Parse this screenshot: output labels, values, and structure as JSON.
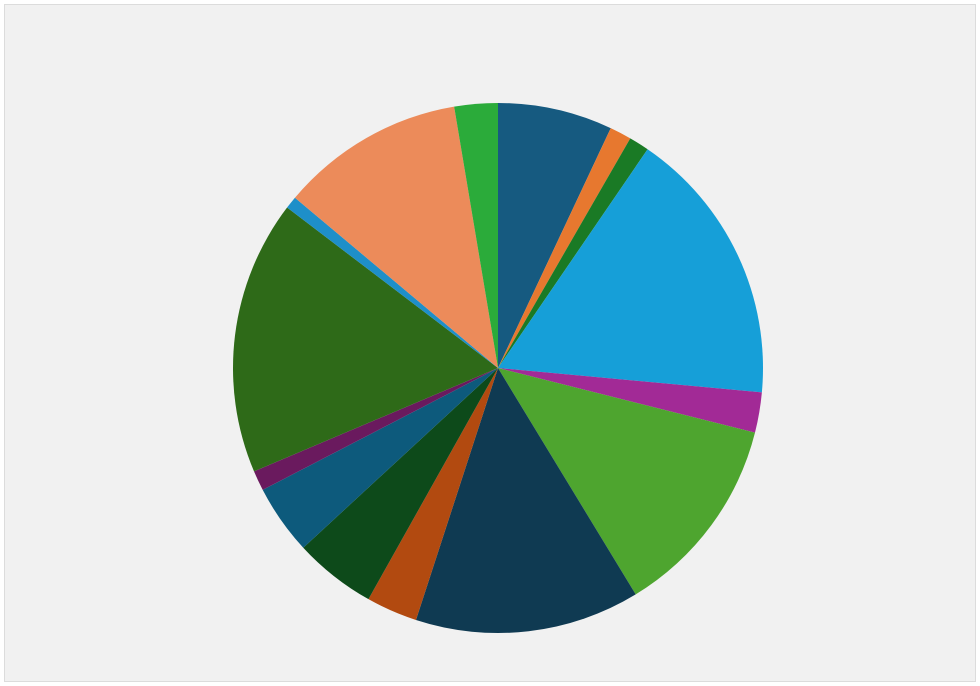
{
  "chart_data": {
    "type": "pie",
    "title": "",
    "start_angle_deg": 0,
    "direction": "clockwise",
    "legend": "none",
    "slices": [
      {
        "value": 7.4,
        "color": "#165a80"
      },
      {
        "value": 1.4,
        "color": "#e7782f"
      },
      {
        "value": 1.3,
        "color": "#1a7a25"
      },
      {
        "value": 17.9,
        "color": "#169fd8"
      },
      {
        "value": 2.6,
        "color": "#a22a96"
      },
      {
        "value": 13.1,
        "color": "#4ea52f"
      },
      {
        "value": 14.5,
        "color": "#0f3a52"
      },
      {
        "value": 3.3,
        "color": "#b24a10"
      },
      {
        "value": 5.3,
        "color": "#0d4a1a"
      },
      {
        "value": 4.5,
        "color": "#0d5a7c"
      },
      {
        "value": 1.3,
        "color": "#6a1a5e"
      },
      {
        "value": 17.7,
        "color": "#2e6a18"
      },
      {
        "value": 0.8,
        "color": "#1e8fc9"
      },
      {
        "value": 11.9,
        "color": "#ec8b5a"
      },
      {
        "value": 2.8,
        "color": "#2bab3a"
      }
    ]
  }
}
